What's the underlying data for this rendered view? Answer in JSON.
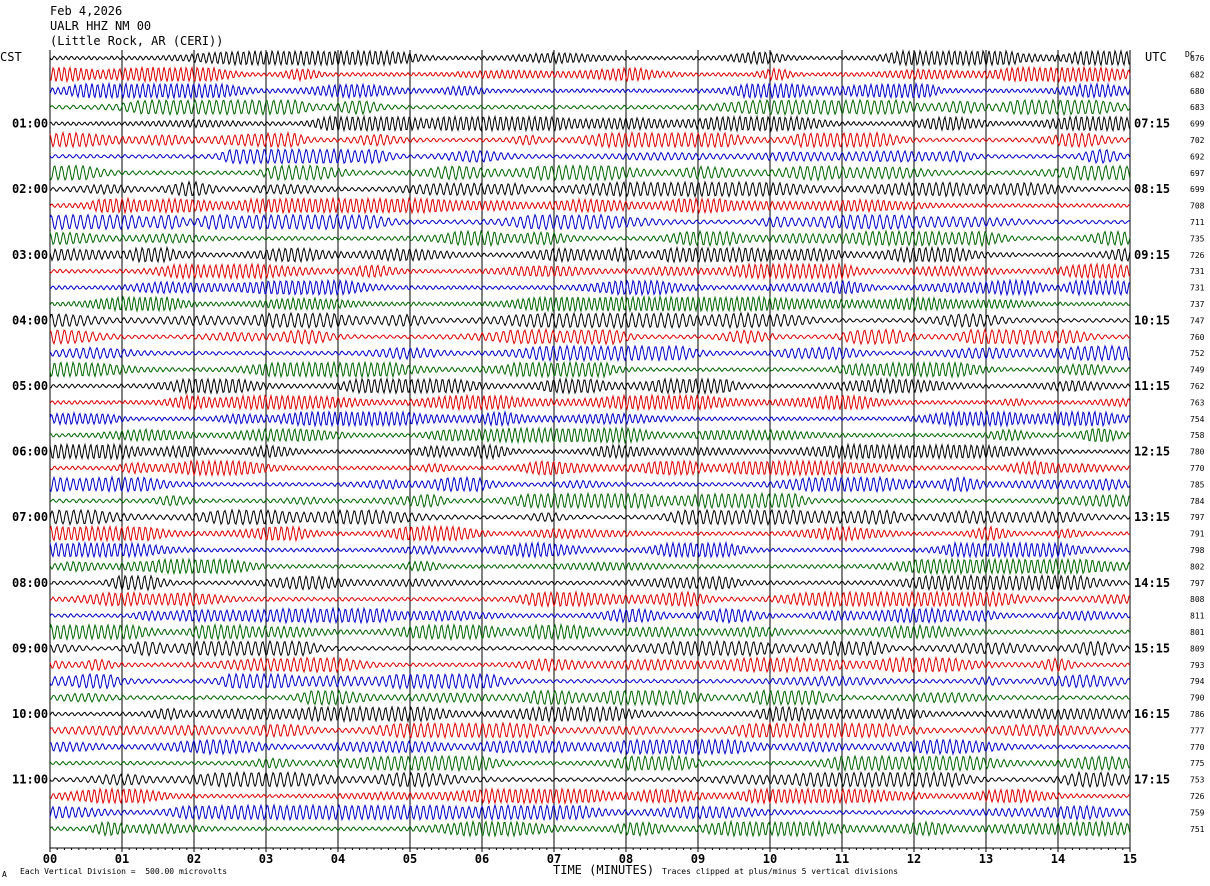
{
  "header": {
    "date": "Feb 4,2026",
    "station": "UALR HHZ NM 00",
    "location": "(Little Rock, AR (CERI))"
  },
  "labels": {
    "left_zone": "CST",
    "right_zone": "UTC",
    "dc": "DC"
  },
  "footer": {
    "scale_note": "Each Vertical Division =  500.00 microvolts",
    "xlabel": "TIME (MINUTES)",
    "clip_note": "Traces clipped at plus/minus 5 vertical divisions",
    "corner_mark": "A"
  },
  "chart_data": {
    "type": "line",
    "title": "UALR HHZ NM 00",
    "xlabel": "TIME (MINUTES)",
    "ylabel": "",
    "x_ticks": [
      "00",
      "01",
      "02",
      "03",
      "04",
      "05",
      "06",
      "07",
      "08",
      "09",
      "10",
      "11",
      "12",
      "13",
      "14",
      "15"
    ],
    "xlim": [
      0,
      15
    ],
    "trace_colors": [
      "#000000",
      "#e00000",
      "#0000cc",
      "#006600"
    ],
    "trace_count": 48,
    "left_time_labels": [
      "01:00",
      "02:00",
      "03:00",
      "04:00",
      "05:00",
      "06:00",
      "07:00",
      "08:00",
      "09:00",
      "10:00",
      "11:00"
    ],
    "right_time_labels": [
      "07:15",
      "08:15",
      "09:15",
      "10:15",
      "11:15",
      "12:15",
      "13:15",
      "14:15",
      "15:15",
      "16:15",
      "17:15"
    ],
    "dc_offsets": [
      676,
      682,
      680,
      683,
      699,
      702,
      692,
      697,
      699,
      708,
      711,
      735,
      726,
      731,
      731,
      737,
      747,
      760,
      752,
      749,
      762,
      763,
      754,
      758,
      780,
      770,
      785,
      784,
      797,
      791,
      798,
      802,
      797,
      808,
      811,
      801,
      809,
      793,
      794,
      790,
      786,
      777,
      770,
      775,
      753,
      726,
      759,
      751
    ],
    "grid": true
  }
}
